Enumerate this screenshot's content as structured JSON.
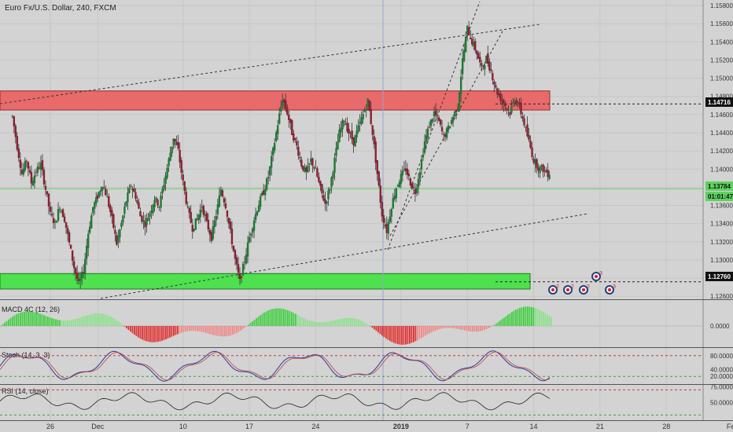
{
  "title": "Euro Fx/U.S. Dollar, 240, FXCM",
  "chart_data": [
    {
      "type": "candlestick",
      "title": "Euro Fx/U.S. Dollar, 240, FXCM",
      "ylim": [
        1.1255,
        1.159
      ],
      "yticks": [
        "1.15800",
        "1.15600",
        "1.15400",
        "1.15200",
        "1.15000",
        "1.14800",
        "1.14600",
        "1.14400",
        "1.14200",
        "1.14000",
        "1.13800",
        "1.13600",
        "1.13400",
        "1.13200",
        "1.13000",
        "1.12800",
        "1.12600"
      ],
      "yticks_values": [
        1.158,
        1.156,
        1.154,
        1.152,
        1.15,
        1.148,
        1.146,
        1.144,
        1.142,
        1.14,
        1.138,
        1.136,
        1.134,
        1.132,
        1.13,
        1.128,
        1.126
      ],
      "x_dates": [
        "26",
        "Dec",
        "10",
        "17",
        "24",
        "2019",
        "7",
        "14",
        "21",
        "28",
        "Feb"
      ],
      "x_day_index": [
        0,
        5,
        14,
        21,
        28,
        37,
        44,
        51,
        58,
        65,
        72
      ],
      "price_labels": [
        {
          "label": "1.14716",
          "value": 1.14716
        },
        {
          "label": "1.13784",
          "value": 1.13784
        },
        {
          "label": "01:01:47",
          "value": 1.1365
        },
        {
          "label": "1.12760",
          "value": 1.1276
        }
      ],
      "resistance_zone": [
        1.1465,
        1.1486
      ],
      "support_zone": [
        1.1268,
        1.1285
      ],
      "horizontal_dashed": [
        1.14716,
        1.1276
      ],
      "current_price_line": 1.13784,
      "trendlines": [
        {
          "from": [
            -4,
            1.1472
          ],
          "to": [
            40.5,
            1.156
          ]
        },
        {
          "from": [
            2.5,
            1.1261
          ],
          "to": [
            49.2,
            1.1345
          ]
        },
        {
          "from": [
            30.5,
            1.1308
          ],
          "to": [
            41.2,
            1.1578
          ]
        },
        {
          "from": [
            31.2,
            1.1328
          ],
          "to": [
            38.6,
            1.1558
          ]
        }
      ],
      "path": [
        [
          -4,
          1.1458
        ],
        [
          -3.5,
          1.1425
        ],
        [
          -3,
          1.1395
        ],
        [
          -2.5,
          1.141
        ],
        [
          -2,
          1.1385
        ],
        [
          -1.5,
          1.1398
        ],
        [
          -1,
          1.1405
        ],
        [
          -0.5,
          1.1378
        ],
        [
          0,
          1.135
        ],
        [
          0.5,
          1.134
        ],
        [
          1,
          1.136
        ],
        [
          1.5,
          1.1345
        ],
        [
          2,
          1.1318
        ],
        [
          2.5,
          1.1292
        ],
        [
          3,
          1.1273
        ],
        [
          3.5,
          1.1288
        ],
        [
          4,
          1.133
        ],
        [
          4.5,
          1.1358
        ],
        [
          5,
          1.137
        ],
        [
          5.5,
          1.1384
        ],
        [
          6,
          1.1368
        ],
        [
          6.5,
          1.1345
        ],
        [
          7,
          1.1318
        ],
        [
          7.5,
          1.134
        ],
        [
          8,
          1.1365
        ],
        [
          8.5,
          1.1382
        ],
        [
          9,
          1.137
        ],
        [
          9.5,
          1.1348
        ],
        [
          10,
          1.134
        ],
        [
          10.5,
          1.1352
        ],
        [
          11,
          1.1368
        ],
        [
          11.5,
          1.136
        ],
        [
          12,
          1.1385
        ],
        [
          12.5,
          1.141
        ],
        [
          13,
          1.1435
        ],
        [
          13.5,
          1.142
        ],
        [
          14,
          1.1385
        ],
        [
          14.5,
          1.1355
        ],
        [
          15,
          1.1335
        ],
        [
          15.5,
          1.1345
        ],
        [
          16,
          1.136
        ],
        [
          16.5,
          1.134
        ],
        [
          17,
          1.1325
        ],
        [
          17.5,
          1.135
        ],
        [
          18,
          1.1378
        ],
        [
          18.5,
          1.136
        ],
        [
          19,
          1.133
        ],
        [
          19.5,
          1.13
        ],
        [
          20,
          1.1276
        ],
        [
          20.5,
          1.13
        ],
        [
          21,
          1.1325
        ],
        [
          21.5,
          1.1345
        ],
        [
          22,
          1.1362
        ],
        [
          22.5,
          1.1375
        ],
        [
          23,
          1.1392
        ],
        [
          23.5,
          1.142
        ],
        [
          24,
          1.145
        ],
        [
          24.5,
          1.1478
        ],
        [
          25,
          1.1462
        ],
        [
          25.5,
          1.144
        ],
        [
          26,
          1.1425
        ],
        [
          26.5,
          1.1405
        ],
        [
          27,
          1.1395
        ],
        [
          27.5,
          1.141
        ],
        [
          28,
          1.1398
        ],
        [
          28.5,
          1.1378
        ],
        [
          29,
          1.1362
        ],
        [
          29.5,
          1.138
        ],
        [
          30,
          1.141
        ],
        [
          30.5,
          1.144
        ],
        [
          31,
          1.1455
        ],
        [
          31.5,
          1.144
        ],
        [
          32,
          1.143
        ],
        [
          32.5,
          1.1445
        ],
        [
          33,
          1.146
        ],
        [
          33.5,
          1.1475
        ],
        [
          34,
          1.144
        ],
        [
          34.5,
          1.1395
        ],
        [
          35,
          1.135
        ],
        [
          35.5,
          1.1332
        ],
        [
          36,
          1.136
        ],
        [
          36.5,
          1.138
        ],
        [
          37,
          1.1392
        ],
        [
          37.5,
          1.14
        ],
        [
          38,
          1.1385
        ],
        [
          38.5,
          1.1375
        ],
        [
          39,
          1.14
        ],
        [
          39.5,
          1.143
        ],
        [
          40,
          1.1448
        ],
        [
          40.5,
          1.1462
        ],
        [
          41,
          1.1452
        ],
        [
          41.5,
          1.1435
        ],
        [
          42,
          1.1445
        ],
        [
          42.5,
          1.1458
        ],
        [
          43,
          1.147
        ],
        [
          43.5,
          1.152
        ],
        [
          44,
          1.1555
        ],
        [
          44.5,
          1.154
        ],
        [
          45,
          1.1528
        ],
        [
          45.5,
          1.151
        ],
        [
          46,
          1.1522
        ],
        [
          46.5,
          1.1508
        ],
        [
          47,
          1.1488
        ],
        [
          47.5,
          1.1478
        ],
        [
          48,
          1.147
        ],
        [
          48.5,
          1.1462
        ],
        [
          49,
          1.1478
        ],
        [
          49.5,
          1.1468
        ],
        [
          50,
          1.145
        ],
        [
          50.5,
          1.143
        ],
        [
          51,
          1.141
        ],
        [
          51.5,
          1.1402
        ],
        [
          52,
          1.14
        ],
        [
          52.5,
          1.1395
        ],
        [
          53,
          1.1398
        ],
        [
          53.5,
          1.139
        ],
        [
          54,
          1.1396
        ],
        [
          54.5,
          1.1388
        ],
        [
          55,
          1.138
        ],
        [
          55.5,
          1.1394
        ],
        [
          56,
          1.1378
        ],
        [
          56.5,
          1.1365
        ],
        [
          57,
          1.137
        ],
        [
          57.5,
          1.1378
        ]
      ],
      "vline_day": 40.5
    },
    {
      "type": "bar",
      "title": "MACD 4C (12, 26)",
      "yticks": [
        "0.0000"
      ],
      "yticks_values": [
        0
      ]
    },
    {
      "type": "line",
      "title": "Stoch (14, 3, 3)",
      "ylim": [
        0,
        100
      ],
      "yticks": [
        "80.0000",
        "40.0000",
        "20.0000"
      ],
      "yticks_values": [
        80,
        40,
        20
      ],
      "levels": [
        80,
        20
      ]
    },
    {
      "type": "line",
      "title": "RSI (14, close)",
      "ylim": [
        22,
        78
      ],
      "yticks": [
        "75.0000",
        "50.0000"
      ],
      "yticks_values": [
        75,
        50
      ],
      "levels": [
        70,
        30
      ]
    }
  ],
  "event_markers": [
    "2",
    "2",
    "2",
    "3",
    "3"
  ]
}
